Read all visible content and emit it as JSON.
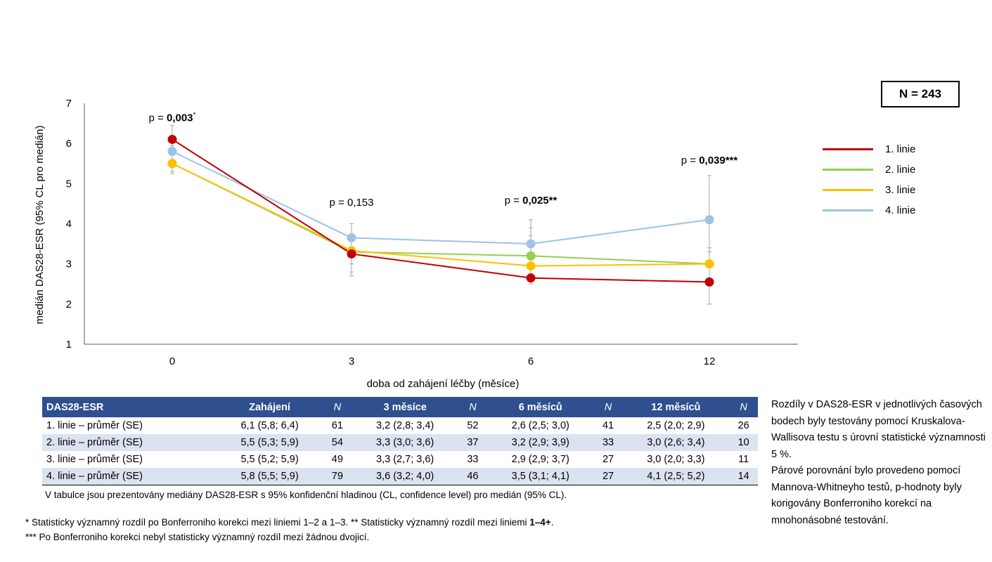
{
  "chart_data": {
    "type": "line",
    "x": [
      "0",
      "3",
      "6",
      "12"
    ],
    "xlabel": "doba od zahájení léčby (měsíce)",
    "ylabel": "medián DAS28-ESR (95% CL pro medián)",
    "ylim": [
      1,
      7
    ],
    "yticks": [
      "1",
      "2",
      "3",
      "4",
      "5",
      "6",
      "7"
    ],
    "legend_position": "right",
    "series": [
      {
        "name": "1. linie",
        "color": "#c00000",
        "values": [
          6.1,
          3.25,
          2.65,
          2.55
        ],
        "err_low": [
          5.85,
          2.8,
          2.5,
          2.0
        ],
        "err_high": [
          6.45,
          3.4,
          3.0,
          2.95
        ]
      },
      {
        "name": "2. linie",
        "color": "#92d050",
        "values": [
          5.5,
          3.3,
          3.2,
          3.0
        ],
        "err_low": [
          5.3,
          3.0,
          2.9,
          2.6
        ],
        "err_high": [
          5.9,
          3.6,
          3.9,
          3.4
        ]
      },
      {
        "name": "3. linie",
        "color": "#ffc000",
        "values": [
          5.5,
          3.33,
          2.95,
          3.0
        ],
        "err_low": [
          5.25,
          2.7,
          2.9,
          2.0
        ],
        "err_high": [
          5.9,
          3.6,
          3.7,
          3.3
        ]
      },
      {
        "name": "4. linie",
        "color": "#9dc3e6",
        "values": [
          5.8,
          3.65,
          3.5,
          4.1
        ],
        "err_low": [
          5.5,
          3.2,
          3.1,
          2.5
        ],
        "err_high": [
          5.95,
          4.0,
          4.1,
          5.2
        ]
      }
    ],
    "annotations": [
      {
        "x": "0",
        "y": 6.55,
        "prefix": "p = ",
        "value": "0,003",
        "suffix": "*",
        "bold": true
      },
      {
        "x": "3",
        "y": 4.45,
        "prefix": "p = ",
        "value": "0,153",
        "suffix": "",
        "bold": false
      },
      {
        "x": "6",
        "y": 4.5,
        "prefix": "p = ",
        "value": "0,025**",
        "suffix": "",
        "bold": true
      },
      {
        "x": "12",
        "y": 5.5,
        "prefix": "p = ",
        "value": "0,039***",
        "suffix": "",
        "bold": true
      }
    ]
  },
  "n_box": "N = 243",
  "table": {
    "headers": [
      "DAS28-ESR",
      "Zahájení",
      "N",
      "3 měsíce",
      "N",
      "6 měsíců",
      "N",
      "12 měsíců",
      "N"
    ],
    "rows": [
      [
        "1. linie – průměr (SE)",
        "6,1 (5,8; 6,4)",
        "61",
        "3,2 (2,8; 3,4)",
        "52",
        "2,6 (2,5; 3,0)",
        "41",
        "2,5 (2,0; 2,9)",
        "26"
      ],
      [
        "2. linie – průměr (SE)",
        "5,5 (5,3; 5,9)",
        "54",
        "3,3 (3,0; 3,6)",
        "37",
        "3,2 (2,9; 3,9)",
        "33",
        "3,0 (2,6; 3,4)",
        "10"
      ],
      [
        "3. linie – průměr (SE)",
        "5,5 (5,2; 5,9)",
        "49",
        "3,3 (2,7; 3,6)",
        "33",
        "2,9 (2,9; 3,7)",
        "27",
        "3,0 (2,0; 3,3)",
        "11"
      ],
      [
        "4. linie – průměr (SE)",
        "5,8 (5,5; 5,9)",
        "79",
        "3,6 (3,2; 4,0)",
        "46",
        "3,5 (3,1; 4,1)",
        "27",
        "4,1 (2,5; 5,2)",
        "14"
      ]
    ],
    "note": "V tabulce jsou prezentovány mediány DAS28-ESR s 95% konfidenční hladinou (CL, confidence level) pro medián (95% CL)."
  },
  "footnotes": {
    "line1_a": "* Statisticky významný rozdíl po Bonferroniho korekci mezi liniemi 1–2 a 1–3. ** Statisticky významný rozdíl mezi liniemi ",
    "line1_b": "1–4+",
    "line1_c": ".",
    "line2": "*** Po Bonferroniho korekci nebyl statisticky významný rozdíl mezi žádnou dvojicí."
  },
  "side_note": {
    "p1": "Rozdíly v DAS28-ESR v jednotlivých časových bodech byly testovány pomocí Kruskalova-Wallisova testu s úrovní statistické významnosti 5 %.",
    "p2": "Párové porovnání bylo provedeno pomocí Mannova-Whitneyho testů, p-hodnoty byly korigovány Bonferroniho korekcí na mnohonásobné testování."
  }
}
